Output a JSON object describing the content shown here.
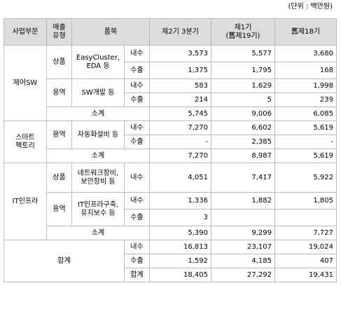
{
  "unit_note": "(단위 : 백만원)",
  "headers": {
    "division": "사업부문",
    "sales_type": "매출\n유형",
    "item": "품목",
    "blank": "",
    "q3": "제2기 3분기",
    "fy1": "제1기\n(舊제19기)",
    "fy18": "舊제18기"
  },
  "rows": {
    "sw_goods_dom": {
      "division": "제어SW",
      "type": "상품",
      "item": "EasyCluster,\nEDA 등",
      "kind": "내수",
      "v1": "3,573",
      "v2": "5,577",
      "v3": "3,680"
    },
    "sw_goods_exp": {
      "kind": "수출",
      "v1": "1,375",
      "v2": "1,795",
      "v3": "168"
    },
    "sw_svc_dom": {
      "type": "용역",
      "item": "SW개발 등",
      "kind": "내수",
      "v1": "583",
      "v2": "1,629",
      "v3": "1,998"
    },
    "sw_svc_exp": {
      "kind": "수출",
      "v1": "214",
      "v2": "5",
      "v3": "239"
    },
    "sw_subtotal": {
      "label": "소계",
      "v1": "5,745",
      "v2": "9,006",
      "v3": "6,085"
    },
    "sf_svc_dom": {
      "division": "스마트\n팩토리",
      "type": "용역",
      "item": "자동화설비 등",
      "kind": "내수",
      "v1": "7,270",
      "v2": "6,602",
      "v3": "5,619"
    },
    "sf_svc_exp": {
      "kind": "수출",
      "v1": "-",
      "v2": "2,385",
      "v3": "-"
    },
    "sf_subtotal": {
      "label": "소계",
      "v1": "7,270",
      "v2": "8,987",
      "v3": "5,619"
    },
    "it_goods_dom": {
      "division": "IT인프라",
      "type": "상품",
      "item": "네트워크장비,\n보안장비 등",
      "kind": "내수",
      "v1": "4,051",
      "v2": "7,417",
      "v3": "5,922"
    },
    "it_svc_dom": {
      "type": "용역",
      "item": "IT인프라구축,\n유지보수 등",
      "kind": "내수",
      "v1": "1,336",
      "v2": "1,882",
      "v3": "1,805"
    },
    "it_svc_exp": {
      "kind": "수출",
      "v1": "3",
      "v2": "",
      "v3": ""
    },
    "it_subtotal": {
      "label": "소계",
      "v1": "5,390",
      "v2": "9,299",
      "v3": "7,727"
    },
    "total_dom": {
      "label": "합계",
      "kind": "내수",
      "v1": "16,813",
      "v2": "23,107",
      "v3": "19,024"
    },
    "total_exp": {
      "kind": "수출",
      "v1": "1,592",
      "v2": "4,185",
      "v3": "407"
    },
    "total_sum": {
      "kind": "합계",
      "v1": "18,405",
      "v2": "27,292",
      "v3": "19,431"
    }
  }
}
